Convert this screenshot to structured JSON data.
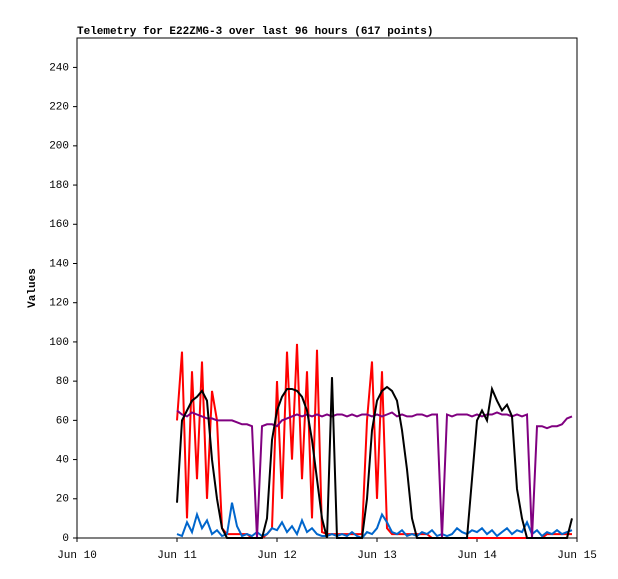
{
  "chart_data": {
    "type": "line",
    "title": "Telemetry for E22ZMG-3 over last 96 hours (617 points)",
    "ylabel": "Values",
    "x": [
      11.0,
      11.05,
      11.1,
      11.15,
      11.2,
      11.25,
      11.3,
      11.35,
      11.4,
      11.45,
      11.5,
      11.55,
      11.6,
      11.65,
      11.7,
      11.75,
      11.8,
      11.85,
      11.9,
      11.95,
      12.0,
      12.05,
      12.1,
      12.15,
      12.2,
      12.25,
      12.3,
      12.35,
      12.4,
      12.45,
      12.5,
      12.55,
      12.6,
      12.65,
      12.7,
      12.75,
      12.8,
      12.85,
      12.9,
      12.95,
      13.0,
      13.05,
      13.1,
      13.15,
      13.2,
      13.25,
      13.3,
      13.35,
      13.4,
      13.45,
      13.5,
      13.55,
      13.6,
      13.65,
      13.7,
      13.75,
      13.8,
      13.85,
      13.9,
      13.95,
      14.0,
      14.05,
      14.1,
      14.15,
      14.2,
      14.25,
      14.3,
      14.35,
      14.4,
      14.45,
      14.5,
      14.55,
      14.6,
      14.65,
      14.7,
      14.75,
      14.8,
      14.85,
      14.9,
      14.95
    ],
    "series": [
      {
        "color": "#ff0000",
        "values": [
          60,
          95,
          10,
          85,
          30,
          90,
          20,
          75,
          60,
          5,
          2,
          2,
          2,
          2,
          2,
          0,
          0,
          0,
          2,
          5,
          80,
          20,
          95,
          40,
          99,
          30,
          85,
          10,
          96,
          3,
          2,
          2,
          2,
          2,
          2,
          2,
          2,
          2,
          60,
          90,
          20,
          85,
          5,
          2,
          2,
          2,
          2,
          2,
          2,
          2,
          2,
          0,
          0,
          0,
          0,
          0,
          0,
          0,
          0,
          0,
          0,
          0,
          0,
          0,
          0,
          0,
          0,
          0,
          0,
          0,
          0,
          0,
          0,
          0,
          2,
          2,
          2,
          2,
          2,
          2
        ]
      },
      {
        "color": "#0066cc",
        "values": [
          2,
          1,
          8,
          3,
          12,
          5,
          9,
          2,
          4,
          1,
          2,
          18,
          6,
          1,
          2,
          1,
          3,
          1,
          2,
          5,
          4,
          8,
          3,
          6,
          2,
          9,
          3,
          5,
          2,
          1,
          1,
          2,
          1,
          2,
          1,
          3,
          1,
          0,
          3,
          2,
          5,
          12,
          8,
          3,
          2,
          4,
          1,
          2,
          1,
          3,
          2,
          4,
          1,
          2,
          1,
          2,
          5,
          3,
          2,
          4,
          3,
          5,
          2,
          4,
          1,
          3,
          5,
          2,
          4,
          3,
          8,
          2,
          4,
          1,
          3,
          2,
          4,
          2,
          3,
          4
        ]
      },
      {
        "color": "#800080",
        "values": [
          65,
          63,
          62,
          64,
          63,
          62,
          61,
          61,
          60,
          60,
          60,
          60,
          59,
          58,
          58,
          57,
          0,
          57,
          58,
          58,
          57,
          60,
          61,
          62,
          63,
          62,
          63,
          62,
          63,
          62,
          63,
          62,
          63,
          63,
          62,
          63,
          62,
          63,
          63,
          62,
          63,
          62,
          63,
          64,
          62,
          63,
          62,
          62,
          63,
          63,
          62,
          63,
          63,
          0,
          63,
          62,
          63,
          63,
          63,
          62,
          63,
          62,
          63,
          63,
          64,
          63,
          63,
          62,
          63,
          62,
          63,
          0,
          57,
          57,
          56,
          57,
          57,
          58,
          61,
          62
        ]
      },
      {
        "color": "#000000",
        "values": [
          18,
          60,
          65,
          70,
          72,
          75,
          70,
          40,
          20,
          5,
          0,
          0,
          0,
          0,
          0,
          0,
          0,
          0,
          10,
          50,
          65,
          72,
          76,
          76,
          75,
          72,
          65,
          50,
          30,
          10,
          0,
          82,
          0,
          0,
          0,
          0,
          0,
          0,
          20,
          55,
          70,
          75,
          77,
          75,
          70,
          55,
          35,
          10,
          0,
          0,
          0,
          0,
          0,
          0,
          0,
          0,
          0,
          0,
          0,
          30,
          60,
          65,
          60,
          76,
          70,
          65,
          68,
          62,
          25,
          10,
          0,
          0,
          0,
          0,
          0,
          0,
          0,
          0,
          0,
          10
        ]
      }
    ],
    "xlim": [
      10,
      15
    ],
    "xticks": [
      {
        "value": 10,
        "label": "Jun 10"
      },
      {
        "value": 11,
        "label": "Jun 11"
      },
      {
        "value": 12,
        "label": "Jun 12"
      },
      {
        "value": 13,
        "label": "Jun 13"
      },
      {
        "value": 14,
        "label": "Jun 14"
      },
      {
        "value": 15,
        "label": "Jun 15"
      }
    ],
    "ylim": [
      0,
      255
    ],
    "yticks": [
      0,
      20,
      40,
      60,
      80,
      100,
      120,
      140,
      160,
      180,
      200,
      220,
      240
    ]
  }
}
